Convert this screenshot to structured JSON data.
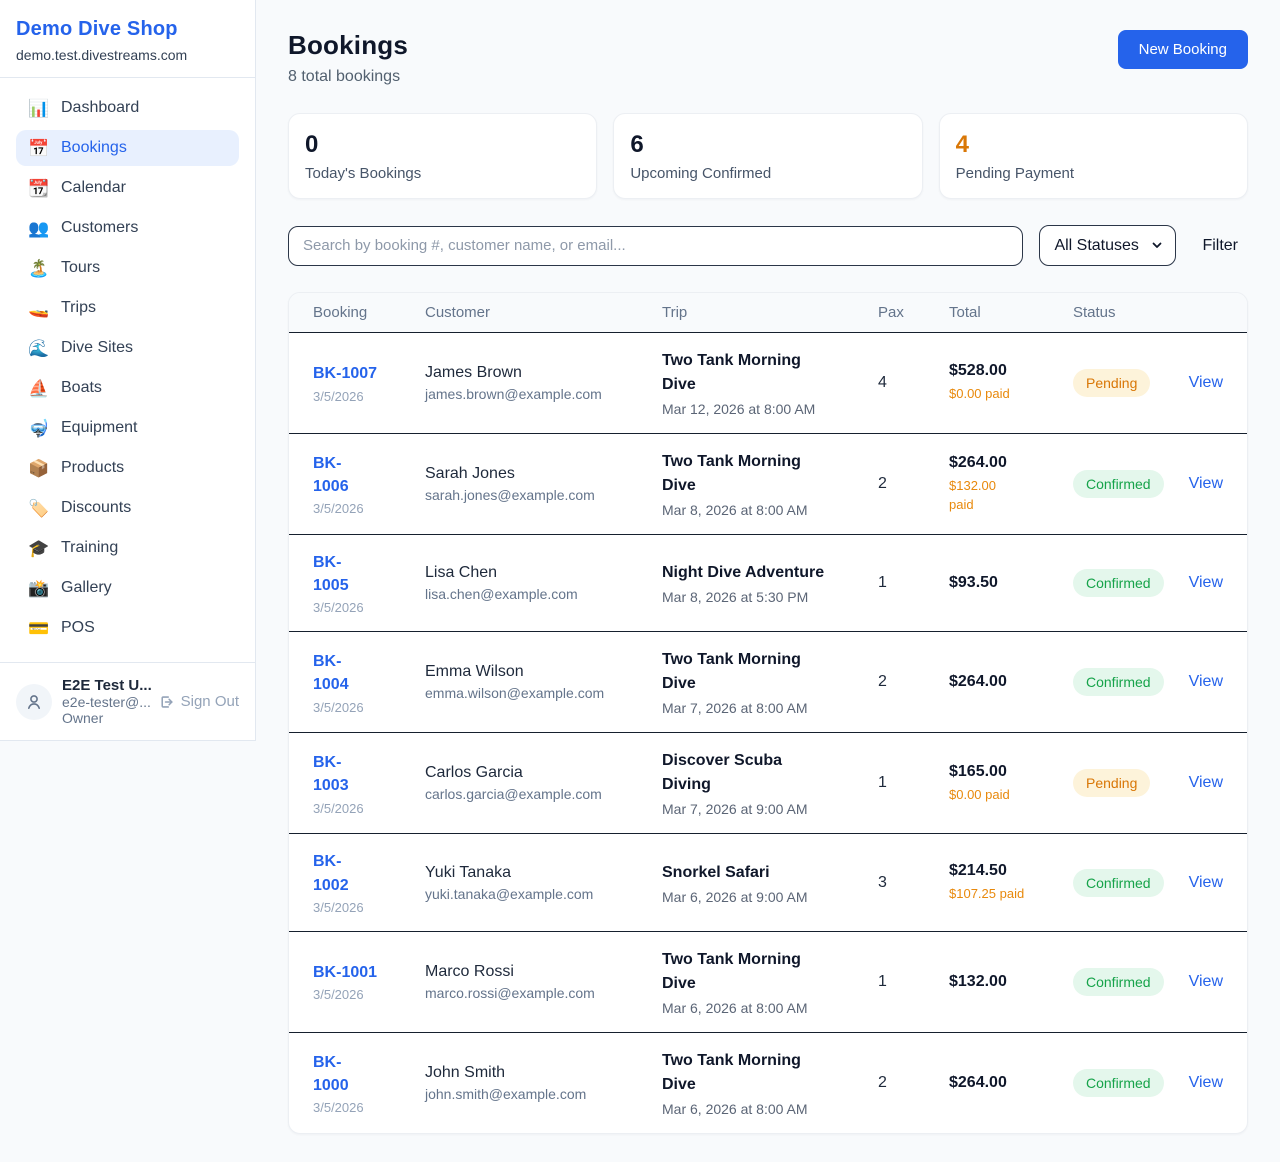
{
  "sidebar": {
    "brand": "Demo Dive Shop",
    "domain": "demo.test.divestreams.com",
    "nav": [
      {
        "label": "Dashboard",
        "icon": "bar-chart-icon",
        "glyph": "📊",
        "active": false
      },
      {
        "label": "Bookings",
        "icon": "calendar-icon",
        "glyph": "📅",
        "active": true
      },
      {
        "label": "Calendar",
        "icon": "tearoff-calendar-icon",
        "glyph": "📆",
        "active": false
      },
      {
        "label": "Customers",
        "icon": "people-icon",
        "glyph": "👥",
        "active": false
      },
      {
        "label": "Tours",
        "icon": "island-icon",
        "glyph": "🏝️",
        "active": false
      },
      {
        "label": "Trips",
        "icon": "speedboat-icon",
        "glyph": "🚤",
        "active": false
      },
      {
        "label": "Dive Sites",
        "icon": "wave-icon",
        "glyph": "🌊",
        "active": false
      },
      {
        "label": "Boats",
        "icon": "sailboat-icon",
        "glyph": "⛵",
        "active": false
      },
      {
        "label": "Equipment",
        "icon": "diving-mask-icon",
        "glyph": "🤿",
        "active": false
      },
      {
        "label": "Products",
        "icon": "package-icon",
        "glyph": "📦",
        "active": false
      },
      {
        "label": "Discounts",
        "icon": "label-tag-icon",
        "glyph": "🏷️",
        "active": false
      },
      {
        "label": "Training",
        "icon": "graduation-cap-icon",
        "glyph": "🎓",
        "active": false
      },
      {
        "label": "Gallery",
        "icon": "camera-flash-icon",
        "glyph": "📸",
        "active": false
      },
      {
        "label": "POS",
        "icon": "credit-card-icon",
        "glyph": "💳",
        "active": false
      }
    ],
    "user": {
      "name": "E2E Test U...",
      "email": "e2e-tester@...",
      "role": "Owner",
      "sign_out_label": "Sign Out"
    }
  },
  "header": {
    "title": "Bookings",
    "subtitle": "8 total bookings",
    "new_booking_label": "New Booking"
  },
  "stats": [
    {
      "value": "0",
      "label": "Today's Bookings",
      "highlight": false
    },
    {
      "value": "6",
      "label": "Upcoming Confirmed",
      "highlight": false
    },
    {
      "value": "4",
      "label": "Pending Payment",
      "highlight": true
    }
  ],
  "filters": {
    "search_placeholder": "Search by booking #, customer name, or email...",
    "status_selected": "All Statuses",
    "filter_label": "Filter"
  },
  "table": {
    "columns": [
      "Booking",
      "Customer",
      "Trip",
      "Pax",
      "Total",
      "Status"
    ],
    "view_label": "View",
    "rows": [
      {
        "id": "BK-1007",
        "date": "3/5/2026",
        "name": "James Brown",
        "email": "james.brown@example.com",
        "trip": "Two Tank Morning\nDive",
        "when": "Mar 12, 2026 at 8:00 AM",
        "pax": "4",
        "total": "$528.00",
        "paid": "$0.00 paid",
        "status": "Pending",
        "status_type": "pending"
      },
      {
        "id": "BK-\n1006",
        "date": "3/5/2026",
        "name": "Sarah Jones",
        "email": "sarah.jones@example.com",
        "trip": "Two Tank Morning\nDive",
        "when": "Mar 8, 2026 at 8:00 AM",
        "pax": "2",
        "total": "$264.00",
        "paid": "$132.00\npaid",
        "status": "Confirmed",
        "status_type": "confirmed"
      },
      {
        "id": "BK-\n1005",
        "date": "3/5/2026",
        "name": "Lisa Chen",
        "email": "lisa.chen@example.com",
        "trip": "Night Dive Adventure",
        "when": "Mar 8, 2026 at 5:30 PM",
        "pax": "1",
        "total": "$93.50",
        "paid": null,
        "status": "Confirmed",
        "status_type": "confirmed"
      },
      {
        "id": "BK-\n1004",
        "date": "3/5/2026",
        "name": "Emma Wilson",
        "email": "emma.wilson@example.com",
        "trip": "Two Tank Morning\nDive",
        "when": "Mar 7, 2026 at 8:00 AM",
        "pax": "2",
        "total": "$264.00",
        "paid": null,
        "status": "Confirmed",
        "status_type": "confirmed"
      },
      {
        "id": "BK-\n1003",
        "date": "3/5/2026",
        "name": "Carlos Garcia",
        "email": "carlos.garcia@example.com",
        "trip": "Discover Scuba\nDiving",
        "when": "Mar 7, 2026 at 9:00 AM",
        "pax": "1",
        "total": "$165.00",
        "paid": "$0.00 paid",
        "status": "Pending",
        "status_type": "pending"
      },
      {
        "id": "BK-\n1002",
        "date": "3/5/2026",
        "name": "Yuki Tanaka",
        "email": "yuki.tanaka@example.com",
        "trip": "Snorkel Safari",
        "when": "Mar 6, 2026 at 9:00 AM",
        "pax": "3",
        "total": "$214.50",
        "paid": "$107.25 paid",
        "status": "Confirmed",
        "status_type": "confirmed"
      },
      {
        "id": "BK-1001",
        "date": "3/5/2026",
        "name": "Marco Rossi",
        "email": "marco.rossi@example.com",
        "trip": "Two Tank Morning\nDive",
        "when": "Mar 6, 2026 at 8:00 AM",
        "pax": "1",
        "total": "$132.00",
        "paid": null,
        "status": "Confirmed",
        "status_type": "confirmed"
      },
      {
        "id": "BK-\n1000",
        "date": "3/5/2026",
        "name": "John Smith",
        "email": "john.smith@example.com",
        "trip": "Two Tank Morning\nDive",
        "when": "Mar 6, 2026 at 8:00 AM",
        "pax": "2",
        "total": "$264.00",
        "paid": null,
        "status": "Confirmed",
        "status_type": "confirmed"
      }
    ]
  },
  "colors": {
    "accent": "#2563eb",
    "warning": "#d97706",
    "paid_orange": "#e8890c",
    "success": "#16a34a",
    "pending_badge_bg": "#fdf3da",
    "confirmed_badge_bg": "#e4f7ec",
    "page_bg": "#f8fafc",
    "row_divider": "#16202e"
  }
}
